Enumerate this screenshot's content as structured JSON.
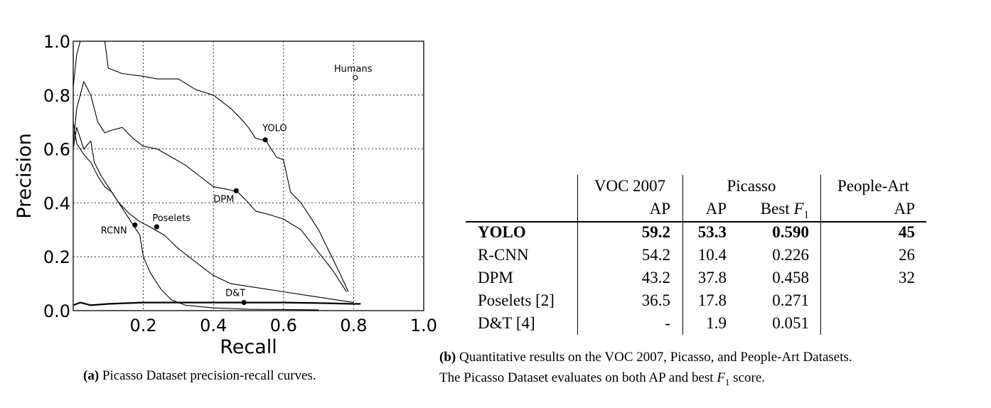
{
  "chart_data": {
    "type": "line",
    "xlabel": "Recall",
    "ylabel": "Precision",
    "xlim": [
      0.0,
      1.0
    ],
    "ylim": [
      0.0,
      1.0
    ],
    "xticks": [
      "0.2",
      "0.4",
      "0.6",
      "0.8",
      "1.0"
    ],
    "yticks": [
      "0.0",
      "0.2",
      "0.4",
      "0.6",
      "0.8",
      "1.0"
    ],
    "grid": true,
    "series": [
      {
        "name": "YOLO",
        "points": [
          [
            0.0,
            0.83
          ],
          [
            0.01,
            0.95
          ],
          [
            0.02,
            1.0
          ],
          [
            0.09,
            1.0
          ],
          [
            0.1,
            0.9
          ],
          [
            0.14,
            0.88
          ],
          [
            0.2,
            0.87
          ],
          [
            0.24,
            0.86
          ],
          [
            0.3,
            0.86
          ],
          [
            0.35,
            0.82
          ],
          [
            0.4,
            0.8
          ],
          [
            0.45,
            0.75
          ],
          [
            0.48,
            0.71
          ],
          [
            0.5,
            0.68
          ],
          [
            0.52,
            0.64
          ],
          [
            0.55,
            0.63
          ],
          [
            0.57,
            0.59
          ],
          [
            0.58,
            0.57
          ],
          [
            0.6,
            0.56
          ],
          [
            0.61,
            0.5
          ],
          [
            0.62,
            0.44
          ],
          [
            0.65,
            0.4
          ],
          [
            0.67,
            0.36
          ],
          [
            0.7,
            0.3
          ],
          [
            0.73,
            0.22
          ],
          [
            0.76,
            0.14
          ],
          [
            0.785,
            0.07
          ]
        ]
      },
      {
        "name": "DPM",
        "points": [
          [
            0.0,
            0.62
          ],
          [
            0.01,
            0.75
          ],
          [
            0.03,
            0.85
          ],
          [
            0.05,
            0.8
          ],
          [
            0.07,
            0.7
          ],
          [
            0.09,
            0.66
          ],
          [
            0.11,
            0.67
          ],
          [
            0.14,
            0.68
          ],
          [
            0.17,
            0.64
          ],
          [
            0.2,
            0.61
          ],
          [
            0.24,
            0.6
          ],
          [
            0.28,
            0.57
          ],
          [
            0.32,
            0.54
          ],
          [
            0.36,
            0.5
          ],
          [
            0.4,
            0.46
          ],
          [
            0.44,
            0.45
          ],
          [
            0.47,
            0.44
          ],
          [
            0.5,
            0.4
          ],
          [
            0.52,
            0.37
          ],
          [
            0.55,
            0.36
          ],
          [
            0.6,
            0.34
          ],
          [
            0.65,
            0.3
          ],
          [
            0.68,
            0.25
          ],
          [
            0.71,
            0.2
          ],
          [
            0.74,
            0.15
          ],
          [
            0.76,
            0.11
          ],
          [
            0.78,
            0.07
          ]
        ]
      },
      {
        "name": "Poselets",
        "points": [
          [
            0.0,
            0.6
          ],
          [
            0.01,
            0.68
          ],
          [
            0.03,
            0.6
          ],
          [
            0.05,
            0.63
          ],
          [
            0.06,
            0.55
          ],
          [
            0.08,
            0.5
          ],
          [
            0.1,
            0.46
          ],
          [
            0.13,
            0.4
          ],
          [
            0.16,
            0.36
          ],
          [
            0.19,
            0.33
          ],
          [
            0.22,
            0.31
          ],
          [
            0.26,
            0.28
          ],
          [
            0.3,
            0.23
          ],
          [
            0.35,
            0.18
          ],
          [
            0.4,
            0.13
          ],
          [
            0.45,
            0.1
          ],
          [
            0.5,
            0.09
          ],
          [
            0.55,
            0.08
          ],
          [
            0.6,
            0.07
          ],
          [
            0.65,
            0.06
          ],
          [
            0.7,
            0.05
          ],
          [
            0.75,
            0.04
          ],
          [
            0.8,
            0.03
          ]
        ]
      },
      {
        "name": "RCNN",
        "points": [
          [
            0.0,
            0.7
          ],
          [
            0.01,
            0.62
          ],
          [
            0.03,
            0.58
          ],
          [
            0.05,
            0.55
          ],
          [
            0.07,
            0.5
          ],
          [
            0.09,
            0.46
          ],
          [
            0.11,
            0.44
          ],
          [
            0.13,
            0.4
          ],
          [
            0.15,
            0.36
          ],
          [
            0.17,
            0.32
          ],
          [
            0.19,
            0.28
          ],
          [
            0.2,
            0.2
          ],
          [
            0.22,
            0.14
          ],
          [
            0.25,
            0.08
          ],
          [
            0.28,
            0.04
          ],
          [
            0.32,
            0.02
          ],
          [
            0.4,
            0.01
          ],
          [
            0.5,
            0.005
          ],
          [
            0.7,
            0.003
          ]
        ]
      },
      {
        "name": "D&T",
        "points": [
          [
            0.0,
            0.02
          ],
          [
            0.02,
            0.03
          ],
          [
            0.05,
            0.02
          ],
          [
            0.1,
            0.025
          ],
          [
            0.2,
            0.03
          ],
          [
            0.3,
            0.03
          ],
          [
            0.4,
            0.03
          ],
          [
            0.5,
            0.03
          ],
          [
            0.6,
            0.03
          ],
          [
            0.7,
            0.028
          ],
          [
            0.8,
            0.025
          ],
          [
            0.82,
            0.025
          ]
        ]
      }
    ],
    "markers": [
      {
        "label": "Humans",
        "x": 0.805,
        "y": 0.865,
        "filled": false
      },
      {
        "label": "YOLO",
        "x": 0.548,
        "y": 0.634,
        "filled": true
      },
      {
        "label": "DPM",
        "x": 0.465,
        "y": 0.445,
        "filled": true
      },
      {
        "label": "Poselets",
        "x": 0.238,
        "y": 0.311,
        "filled": true
      },
      {
        "label": "RCNN",
        "x": 0.176,
        "y": 0.318,
        "filled": true
      },
      {
        "label": "D&T",
        "x": 0.487,
        "y": 0.03,
        "filled": true
      }
    ]
  },
  "captions": {
    "a_prefix": "(a)",
    "a_text": " Picasso Dataset precision-recall curves.",
    "b_prefix": "(b)",
    "b_line1": " Quantitative results on the VOC 2007, Picasso, and People-Art Datasets.",
    "b_line2_pre": "The Picasso Dataset evaluates on both AP and best ",
    "b_line2_post": " score."
  },
  "table": {
    "headers": {
      "voc": "VOC 2007",
      "picasso": "Picasso",
      "peopleart": "People-Art",
      "ap": "AP",
      "bestf1_pre": "Best ",
      "f": "F",
      "sub1": "1"
    },
    "rows": [
      {
        "method": "YOLO",
        "voc_ap": "59.2",
        "pic_ap": "53.3",
        "pic_f1": "0.590",
        "pa_ap": "45",
        "bold": true
      },
      {
        "method": "R-CNN",
        "voc_ap": "54.2",
        "pic_ap": "10.4",
        "pic_f1": "0.226",
        "pa_ap": "26",
        "bold": false
      },
      {
        "method": "DPM",
        "voc_ap": "43.2",
        "pic_ap": "37.8",
        "pic_f1": "0.458",
        "pa_ap": "32",
        "bold": false
      },
      {
        "method": "Poselets [2]",
        "voc_ap": "36.5",
        "pic_ap": "17.8",
        "pic_f1": "0.271",
        "pa_ap": "",
        "bold": false
      },
      {
        "method": "D&T [4]",
        "voc_ap": "-",
        "pic_ap": "1.9",
        "pic_f1": "0.051",
        "pa_ap": "",
        "bold": false
      }
    ]
  }
}
